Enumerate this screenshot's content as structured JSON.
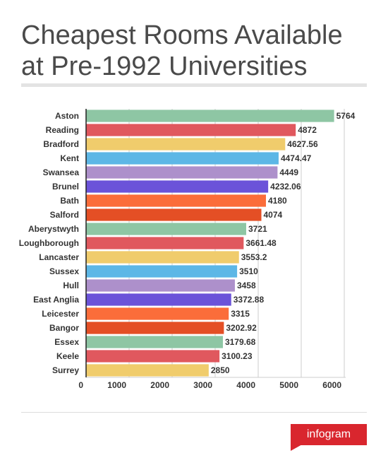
{
  "chart_data": {
    "type": "bar",
    "orientation": "horizontal",
    "title": "Cheapest Rooms Available at Pre-1992 Universities",
    "categories": [
      "Aston",
      "Reading",
      "Bradford",
      "Kent",
      "Swansea",
      "Brunel",
      "Bath",
      "Salford",
      "Aberystwyth",
      "Loughborough",
      "Lancaster",
      "Sussex",
      "Hull",
      "East Anglia",
      "Leicester",
      "Bangor",
      "Essex",
      "Keele",
      "Surrey"
    ],
    "values": [
      5764,
      4872,
      4627.56,
      4474.47,
      4449,
      4232.06,
      4180,
      4074,
      3721,
      3661.48,
      3553.2,
      3510,
      3458,
      3372.88,
      3315,
      3202.92,
      3179.68,
      3100.23,
      2850
    ],
    "colors": [
      "#8ec6a4",
      "#e0585e",
      "#f0cc6c",
      "#5db7e6",
      "#ad90cb",
      "#6b53d9",
      "#fb6d3a",
      "#e44f25",
      "#8ec6a4",
      "#e0585e",
      "#f0cc6c",
      "#5db7e6",
      "#ad90cb",
      "#6b53d9",
      "#fb6d3a",
      "#e44f25",
      "#8ec6a4",
      "#e0585e",
      "#f0cc6c"
    ],
    "xlim": [
      0,
      6000
    ],
    "xticks": [
      0,
      1000,
      2000,
      3000,
      4000,
      5000,
      6000
    ],
    "grid": true,
    "brand": "infogram"
  }
}
